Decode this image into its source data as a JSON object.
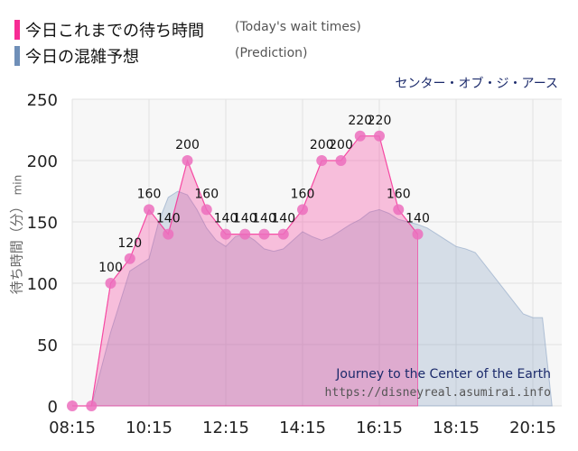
{
  "legend": {
    "actual_label": "今日これまでの待ち時間",
    "actual_note": "(Today's wait times)",
    "actual_color": "#f72b94",
    "prediction_label": "今日の混雑予想",
    "prediction_note": "(Prediction)",
    "prediction_color": "#6f8fb8"
  },
  "subtitle": "センター・オブ・ジ・アース",
  "ride_name": "Journey to the Center of the Earth",
  "source": "https://disneyreal.asumirai.info",
  "chart_data": {
    "type": "area",
    "ylabel_jp": "待ち時間（分）",
    "ylabel_unit": "min",
    "ylim": [
      0,
      250
    ],
    "y_ticks": [
      0,
      50,
      100,
      150,
      200,
      250
    ],
    "x_tick_labels": [
      "08:15",
      "10:15",
      "12:15",
      "14:15",
      "16:15",
      "18:15",
      "20:15"
    ],
    "xlim": [
      "08:15",
      "21:00"
    ],
    "grid": true,
    "series": [
      {
        "name": "今日これまでの待ち時間",
        "color": "#f72b94",
        "x": [
          "08:15",
          "08:45",
          "09:15",
          "09:45",
          "10:15",
          "10:45",
          "11:15",
          "11:45",
          "12:15",
          "12:45",
          "13:15",
          "13:45",
          "14:15",
          "14:45",
          "15:15",
          "15:45",
          "16:15",
          "16:45",
          "17:15"
        ],
        "values": [
          0,
          0,
          100,
          120,
          160,
          140,
          200,
          160,
          140,
          140,
          140,
          140,
          160,
          200,
          200,
          220,
          220,
          160,
          140
        ],
        "labels": [
          "",
          "",
          "100",
          "120",
          "160",
          "140",
          "200",
          "160",
          "140",
          "140",
          "140",
          "140",
          "160",
          "200",
          "200",
          "220",
          "220",
          "160",
          "140"
        ]
      },
      {
        "name": "今日の混雑予想",
        "color": "#6f8fb8",
        "x": [
          "08:15",
          "08:45",
          "09:15",
          "09:45",
          "10:15",
          "10:30",
          "10:45",
          "11:00",
          "11:15",
          "11:30",
          "11:45",
          "12:00",
          "12:15",
          "12:30",
          "12:45",
          "13:00",
          "13:15",
          "13:30",
          "13:45",
          "14:00",
          "14:15",
          "14:30",
          "14:45",
          "15:00",
          "15:15",
          "15:30",
          "15:45",
          "16:00",
          "16:15",
          "16:30",
          "16:45",
          "17:00",
          "17:15",
          "17:30",
          "17:45",
          "18:00",
          "18:15",
          "18:30",
          "18:45",
          "19:00",
          "19:15",
          "19:30",
          "19:45",
          "20:00",
          "20:15",
          "20:30",
          "20:45"
        ],
        "values": [
          0,
          0,
          60,
          110,
          120,
          150,
          170,
          175,
          172,
          160,
          145,
          135,
          130,
          138,
          140,
          135,
          128,
          126,
          128,
          135,
          142,
          138,
          135,
          138,
          143,
          148,
          152,
          158,
          160,
          157,
          152,
          150,
          148,
          145,
          140,
          135,
          130,
          128,
          125,
          115,
          105,
          95,
          85,
          75,
          72,
          72,
          0
        ]
      }
    ]
  }
}
